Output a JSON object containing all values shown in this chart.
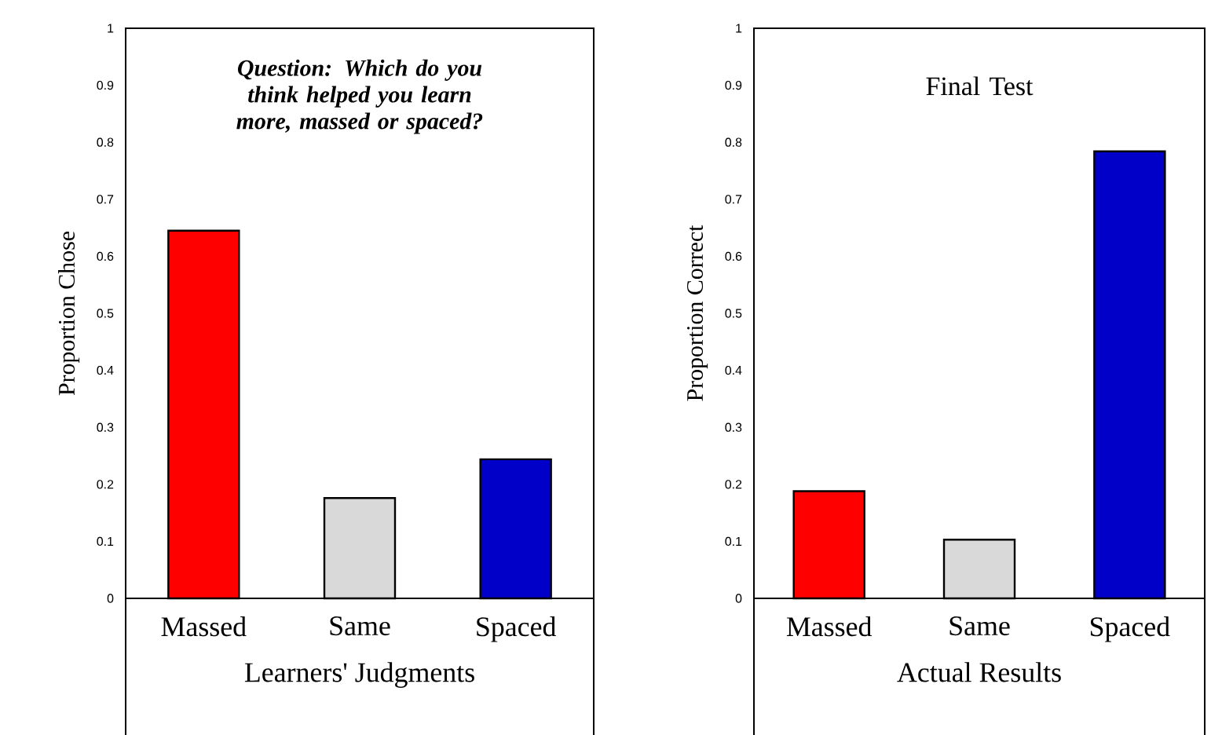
{
  "chart_data": [
    {
      "type": "bar",
      "categories": [
        "Massed",
        "Same",
        "Spaced"
      ],
      "values": [
        0.645,
        0.176,
        0.244
      ],
      "colors": [
        "#ff0000",
        "#d9d9d9",
        "#0000c8"
      ],
      "ylabel": "Proportion Chose",
      "xlabel": "Learners' Judgments",
      "ylim": [
        0,
        1
      ],
      "yticks": [
        0,
        0.1,
        0.2,
        0.3,
        0.4,
        0.5,
        0.6,
        0.7,
        0.8,
        0.9,
        1
      ],
      "annotations": [
        "Question: Which do you think helped you learn more, massed or spaced?"
      ]
    },
    {
      "type": "bar",
      "categories": [
        "Massed",
        "Same",
        "Spaced"
      ],
      "values": [
        0.188,
        0.103,
        0.784
      ],
      "colors": [
        "#ff0000",
        "#d9d9d9",
        "#0000c8"
      ],
      "ylabel": "Proportion Correct",
      "xlabel": "Actual Results",
      "ylim": [
        0,
        1
      ],
      "yticks": [
        0,
        0.1,
        0.2,
        0.3,
        0.4,
        0.5,
        0.6,
        0.7,
        0.8,
        0.9,
        1
      ],
      "annotations": [
        "Final Test"
      ]
    }
  ]
}
